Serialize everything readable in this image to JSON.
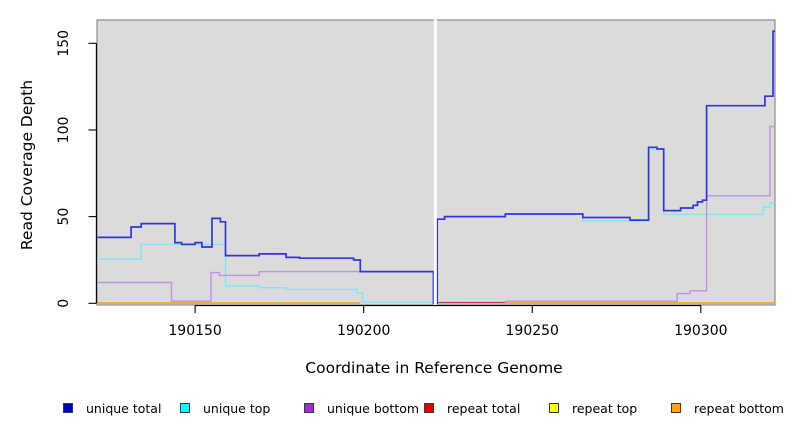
{
  "chart_data": {
    "type": "line",
    "subtype": "step-coverage",
    "title": "",
    "xlabel": "Coordinate in Reference Genome",
    "ylabel": "Read Coverage Depth",
    "xlim": [
      190120.9,
      190322
    ],
    "ylim": [
      0,
      163
    ],
    "x_ticks": [
      "190150",
      "190200",
      "190250",
      "190300"
    ],
    "x_tick_values": [
      190150,
      190200,
      190250,
      190300
    ],
    "y_ticks": [
      "0",
      "50",
      "100",
      "150"
    ],
    "y_tick_values": [
      0,
      50,
      100,
      150
    ],
    "grid": false,
    "panel_bg": "#DBDBDB",
    "panel_border": "#8C8C8C",
    "axis_color": "#000000",
    "legend_position": "bottom",
    "data_gap": {
      "x_start": 190220.8,
      "x_end": 190221.7,
      "note": "white vertical band across full panel height (no data)"
    },
    "series": [
      {
        "name": "unique total",
        "legend_color": "#0000CD",
        "line_color": "#3434DF",
        "z": 6,
        "width": 1.7,
        "segments": [
          [
            [
              190121,
              38
            ],
            [
              190131,
              44
            ],
            [
              190134,
              46
            ],
            [
              190144,
              35
            ],
            [
              190146,
              34
            ],
            [
              190150,
              35
            ],
            [
              190152,
              32.5
            ],
            [
              190155,
              49
            ],
            [
              190157.5,
              47
            ],
            [
              190159,
              27.5
            ],
            [
              190169,
              28.5
            ],
            [
              190177,
              26.5
            ],
            [
              190181,
              26
            ],
            [
              190197,
              25
            ],
            [
              190199,
              18.3
            ],
            [
              190220.7,
              0
            ],
            [
              190221.8,
              48.5
            ],
            [
              190224,
              50
            ],
            [
              190242,
              51.5
            ],
            [
              190265,
              49.5
            ],
            [
              190279,
              48
            ],
            [
              190284.5,
              90
            ],
            [
              190287,
              89
            ],
            [
              190289,
              53.5
            ],
            [
              190294,
              55
            ],
            [
              190297.7,
              56.5
            ],
            [
              190299,
              58.5
            ],
            [
              190300.5,
              59.5
            ],
            [
              190301.7,
              114
            ],
            [
              190319,
              119.5
            ],
            [
              190321.4,
              157
            ],
            [
              190322,
              157
            ]
          ]
        ]
      },
      {
        "name": "unique top",
        "legend_color": "#00FFFF",
        "line_color": "#7CE9F0",
        "z": 3,
        "width": 1.4,
        "segments": [
          [
            [
              190121,
              25.5
            ],
            [
              190134,
              34
            ],
            [
              190159,
              10
            ],
            [
              190169,
              9
            ],
            [
              190177,
              8
            ],
            [
              190198,
              6
            ],
            [
              190199.7,
              0.7
            ],
            [
              190220.7,
              0
            ],
            [
              190221.8,
              48.5
            ],
            [
              190224,
              50
            ],
            [
              190242,
              51.5
            ],
            [
              190265,
              47.5
            ],
            [
              190284.5,
              89
            ],
            [
              190289,
              51.3
            ],
            [
              190318.5,
              55.5
            ],
            [
              190320.5,
              58
            ],
            [
              190322,
              58
            ]
          ]
        ]
      },
      {
        "name": "unique bottom",
        "legend_color": "#9932CC",
        "line_color": "#C191E6",
        "z": 4,
        "width": 1.4,
        "segments": [
          [
            [
              190121,
              12
            ],
            [
              190143,
              1.2
            ],
            [
              190154.7,
              17.7
            ],
            [
              190157.2,
              16.1
            ],
            [
              190169,
              18.3
            ],
            [
              190220.7,
              0
            ]
          ],
          [
            [
              190242,
              1.2
            ],
            [
              190293,
              5.6
            ],
            [
              190296.8,
              7.2
            ],
            [
              190301.7,
              62
            ],
            [
              190320.5,
              102
            ],
            [
              190322,
              102
            ]
          ]
        ]
      },
      {
        "name": "repeat total",
        "legend_color": "#E60000",
        "line_color": "#C23B5E",
        "z": 1,
        "width": 1.4,
        "segments": [
          [
            [
              190221.8,
              0.4
            ],
            [
              190242,
              0.4
            ]
          ]
        ]
      },
      {
        "name": "repeat top",
        "legend_color": "#FFFF00",
        "line_color": "#FFFF00",
        "z": 0,
        "width": 1.4,
        "segments": []
      },
      {
        "name": "repeat bottom",
        "legend_color": "#FFA500",
        "line_color": "#FFA021",
        "z": 2,
        "width": 1.8,
        "segments": [
          [
            [
              190121,
              0.15
            ],
            [
              190199,
              0.15
            ]
          ],
          [
            [
              190242,
              0.15
            ],
            [
              190322,
              0.15
            ]
          ]
        ]
      }
    ]
  }
}
